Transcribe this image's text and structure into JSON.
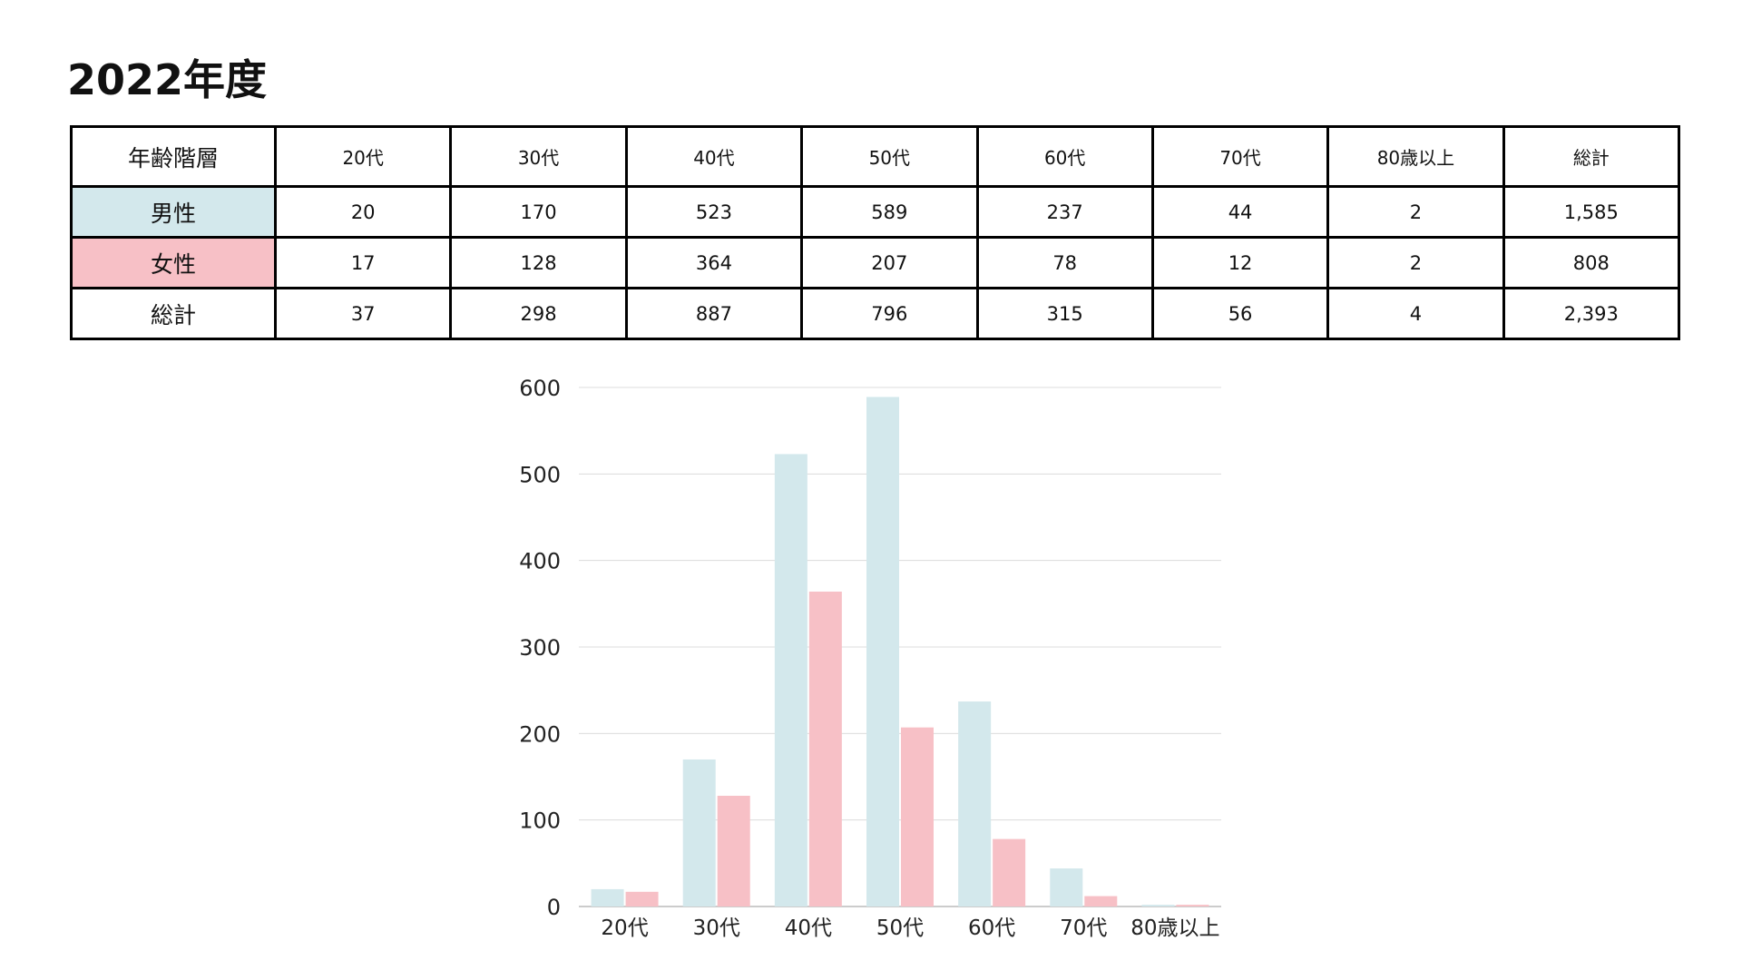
{
  "title": "2022年度",
  "colors": {
    "male": "#d3e8ec",
    "female": "#f7c0c6",
    "grid": "#dcdcdc"
  },
  "table": {
    "header": [
      "年齢階層",
      "20代",
      "30代",
      "40代",
      "50代",
      "60代",
      "70代",
      "80歳以上",
      "総計"
    ],
    "rows": [
      {
        "label": "男性",
        "values": [
          "20",
          "170",
          "523",
          "589",
          "237",
          "44",
          "2",
          "1,585"
        ]
      },
      {
        "label": "女性",
        "values": [
          "17",
          "128",
          "364",
          "207",
          "78",
          "12",
          "2",
          "808"
        ]
      },
      {
        "label": "総計",
        "values": [
          "37",
          "298",
          "887",
          "796",
          "315",
          "56",
          "4",
          "2,393"
        ]
      }
    ]
  },
  "chart_data": {
    "type": "bar",
    "categories": [
      "20代",
      "30代",
      "40代",
      "50代",
      "60代",
      "70代",
      "80歳以上"
    ],
    "series": [
      {
        "values": [
          20,
          170,
          523,
          589,
          237,
          44,
          2
        ]
      },
      {
        "values": [
          17,
          128,
          364,
          207,
          78,
          12,
          2
        ]
      }
    ],
    "ylim": [
      0,
      600
    ],
    "yticks": [
      0,
      100,
      200,
      300,
      400,
      500,
      600
    ],
    "grid": true,
    "legend": "none"
  }
}
